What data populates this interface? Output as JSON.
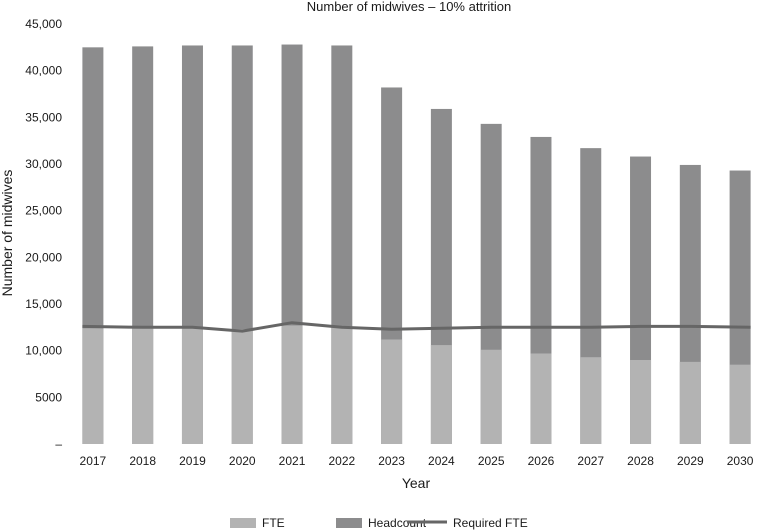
{
  "chart_data": {
    "type": "bar",
    "title": "Number of midwives – 10% attrition",
    "xlabel": "Year",
    "ylabel": "Number of midwives",
    "categories": [
      "2017",
      "2018",
      "2019",
      "2020",
      "2021",
      "2022",
      "2023",
      "2024",
      "2025",
      "2026",
      "2027",
      "2028",
      "2029",
      "2030"
    ],
    "ylim": [
      0,
      45000
    ],
    "yticks": [
      {
        "value": 0,
        "label": "–"
      },
      {
        "value": 5000,
        "label": "5000"
      },
      {
        "value": 10000,
        "label": "10,000"
      },
      {
        "value": 15000,
        "label": "15,000"
      },
      {
        "value": 20000,
        "label": "20,000"
      },
      {
        "value": 25000,
        "label": "25,000"
      },
      {
        "value": 30000,
        "label": "30,000"
      },
      {
        "value": 35000,
        "label": "35,000"
      },
      {
        "value": 40000,
        "label": "40,000"
      },
      {
        "value": 45000,
        "label": "45,000"
      }
    ],
    "grid": false,
    "legend_position": "bottom",
    "series": [
      {
        "name": "FTE",
        "kind": "bar",
        "color": "#b3b3b3",
        "values": [
          12400,
          12400,
          12400,
          12300,
          12700,
          12500,
          11200,
          10600,
          10100,
          9700,
          9300,
          9000,
          8800,
          8500
        ]
      },
      {
        "name": "Headcount",
        "kind": "bar",
        "color": "#8c8c8d",
        "values": [
          42500,
          42600,
          42700,
          42700,
          42800,
          42700,
          38200,
          35900,
          34300,
          32900,
          31700,
          30800,
          29900,
          29300
        ]
      },
      {
        "name": "Required FTE",
        "kind": "line",
        "color": "#666666",
        "values": [
          12600,
          12500,
          12500,
          12100,
          13000,
          12500,
          12300,
          12400,
          12500,
          12500,
          12500,
          12600,
          12600,
          12500
        ]
      }
    ]
  }
}
